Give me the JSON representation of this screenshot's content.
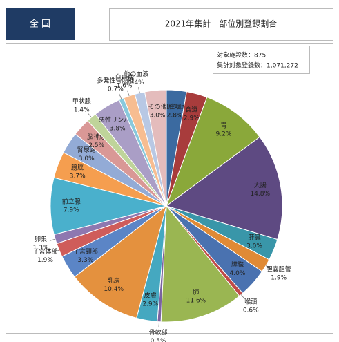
{
  "region": "全 国",
  "chart_data": {
    "type": "pie",
    "title": "2021年集計　部位別登録割合",
    "notes": [
      "対象施設数：875",
      "集計対象登録数：1,071,272"
    ],
    "categories": [
      "口腔咽頭",
      "食道",
      "胃",
      "大腸",
      "肝臓",
      "胆嚢胆管",
      "膵臓",
      "喉頭",
      "肺",
      "骨軟部",
      "皮膚",
      "乳房",
      "子宮頸部",
      "子宮体部",
      "卵巣",
      "前立腺",
      "膀胱",
      "腎尿路",
      "脳神経",
      "甲状腺",
      "悪性リンパ腫",
      "多発性骨髄腫",
      "白血病",
      "他の血液",
      "その他"
    ],
    "values": [
      2.8,
      2.9,
      9.2,
      14.8,
      3.0,
      1.9,
      4.0,
      0.6,
      11.6,
      0.5,
      2.9,
      10.4,
      3.3,
      1.9,
      1.3,
      7.9,
      3.7,
      3.0,
      2.5,
      1.4,
      3.8,
      0.7,
      1.6,
      1.4,
      3.0
    ],
    "value_labels": [
      "2.8%",
      "2.9%",
      "9.2%",
      "14.8%",
      "3.0%",
      "1.9%",
      "4.0%",
      "0.6%",
      "11.6%",
      "0.5%",
      "2.9%",
      "10.4%",
      "3.3%",
      "1.9%",
      "1.3%",
      "7.9%",
      "3.7%",
      "3.0%",
      "2.5%",
      "1.4%",
      "3.8%",
      "0.7%",
      "1.6%",
      "1.4%",
      "3.0%"
    ],
    "colors": [
      "#3b6aa0",
      "#a83c3c",
      "#8aa83a",
      "#5e4a82",
      "#3996a9",
      "#e08a35",
      "#4a72b0",
      "#c04a48",
      "#9ab652",
      "#7a63a0",
      "#45a8c0",
      "#e4913e",
      "#5b85c6",
      "#cf5c5a",
      "#8e78b0",
      "#4ab0cc",
      "#f59e4f",
      "#93abd6",
      "#d99896",
      "#bfd49a",
      "#aa9ec6",
      "#88c9dc",
      "#f7bd91",
      "#b8c8e4",
      "#e4bcbc"
    ]
  }
}
